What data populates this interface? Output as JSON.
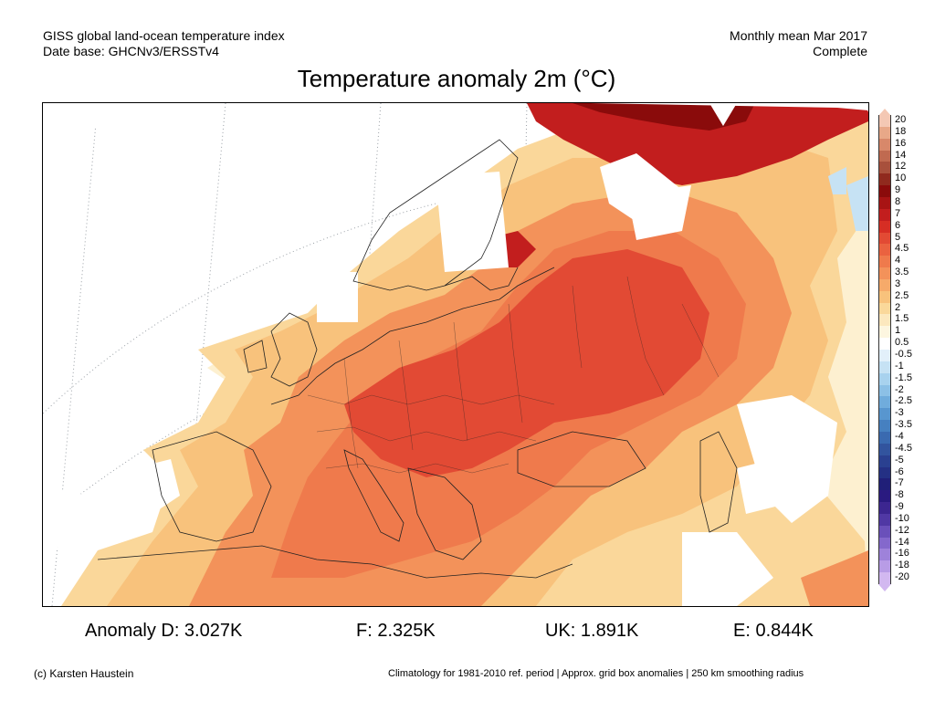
{
  "header": {
    "line1_left": "GISS global land-ocean temperature index",
    "line2_left": "Date base: GHCNv3/ERSSTv4",
    "line1_right": "Monthly mean Mar 2017",
    "line2_right": "Complete"
  },
  "title": "Temperature anomaly 2m (°C)",
  "colorbar": {
    "labels": [
      "20",
      "18",
      "16",
      "14",
      "12",
      "10",
      "9",
      "8",
      "7",
      "6",
      "5",
      "4.5",
      "4",
      "3.5",
      "3",
      "2.5",
      "2",
      "1.5",
      "1",
      "0.5",
      "-0.5",
      "-1",
      "-1.5",
      "-2",
      "-2.5",
      "-3",
      "-3.5",
      "-4",
      "-4.5",
      "-5",
      "-6",
      "-7",
      "-8",
      "-9",
      "-10",
      "-12",
      "-14",
      "-16",
      "-18",
      "-20"
    ],
    "colors": [
      "#f4c8b4",
      "#e8a888",
      "#d8886a",
      "#c06a50",
      "#a8503c",
      "#902a1e",
      "#8a0b0b",
      "#a81414",
      "#c21e1e",
      "#d62e24",
      "#e24a34",
      "#ea6240",
      "#ef7a4c",
      "#f3925a",
      "#f6aa6a",
      "#f8c27c",
      "#fad89a",
      "#fce8be",
      "#fdf6e0",
      "#ffffff",
      "#e2f0fa",
      "#c6e2f4",
      "#a8d2ee",
      "#8cc0e6",
      "#70acdc",
      "#5896cf",
      "#4680c0",
      "#3a6ab0",
      "#32549e",
      "#2a4090",
      "#243084",
      "#201f78",
      "#2a1a80",
      "#3c2690",
      "#5038a4",
      "#6a50ba",
      "#8468cc",
      "#9e82da",
      "#b89ce6",
      "#d2b8f0"
    ]
  },
  "stats": [
    {
      "label": "Anomaly D: 3.027K"
    },
    {
      "label": "F: 2.325K"
    },
    {
      "label": "UK: 1.891K"
    },
    {
      "label": "E: 0.844K"
    }
  ],
  "footer": {
    "left": "(c) Karsten Haustein",
    "right": "Climatology for 1981-2010 ref. period | Approx. grid box anomalies | 250 km smoothing radius"
  },
  "map_colors": {
    "very_light": "#fdf0d0",
    "light": "#fad79a",
    "light_orange": "#f8c27c",
    "orange": "#f3925a",
    "orange_red": "#ef7a4c",
    "red": "#e24a34",
    "dark_red": "#c21e1e",
    "deepest_red": "#8a0b0b",
    "pale_blue": "#c6e2f4",
    "border": "#222222",
    "grid": "#9aa0a6"
  }
}
